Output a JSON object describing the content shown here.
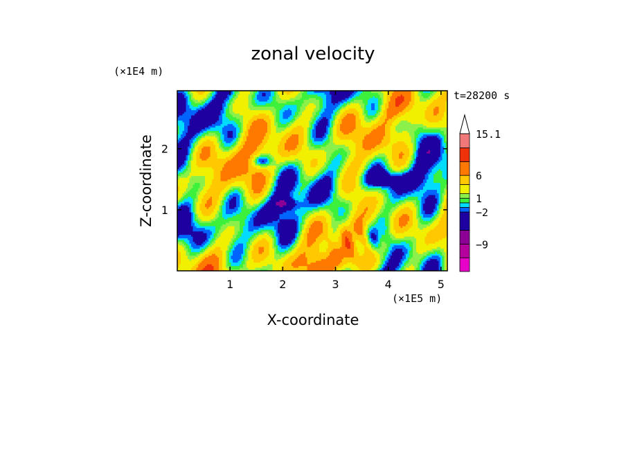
{
  "chart_data": {
    "type": "heatmap",
    "title": "zonal velocity",
    "xlabel": "X-coordinate",
    "ylabel": "Z-coordinate",
    "x_unit": "(×1E5 m)",
    "y_unit": "(×1E4 m)",
    "time_label": "t=28200 s",
    "xlim": [
      0,
      5.12
    ],
    "ylim": [
      0,
      2.95
    ],
    "x_ticks": [
      "1",
      "2",
      "3",
      "4",
      "5"
    ],
    "x_tick_values": [
      1,
      2,
      3,
      4,
      5
    ],
    "y_ticks": [
      "1",
      "2"
    ],
    "y_tick_values": [
      1,
      2
    ],
    "colorbar": {
      "labels": [
        "15.1",
        "6",
        "1",
        "−2",
        "−9"
      ],
      "label_values": [
        15.1,
        6,
        1,
        -2,
        -9
      ],
      "extend": "max",
      "levels": [
        -15,
        -12,
        -9,
        -6,
        -2,
        -1,
        0,
        1,
        2,
        4,
        6,
        9,
        12,
        15.1
      ],
      "colors": [
        "#e600c8",
        "#b4009c",
        "#8c0096",
        "#1e00a0",
        "#0064ff",
        "#00dcff",
        "#3cf03c",
        "#8cf04a",
        "#f0f000",
        "#ffc800",
        "#ff7800",
        "#f0320a",
        "#f07878",
        "#f5c8c8"
      ]
    }
  }
}
